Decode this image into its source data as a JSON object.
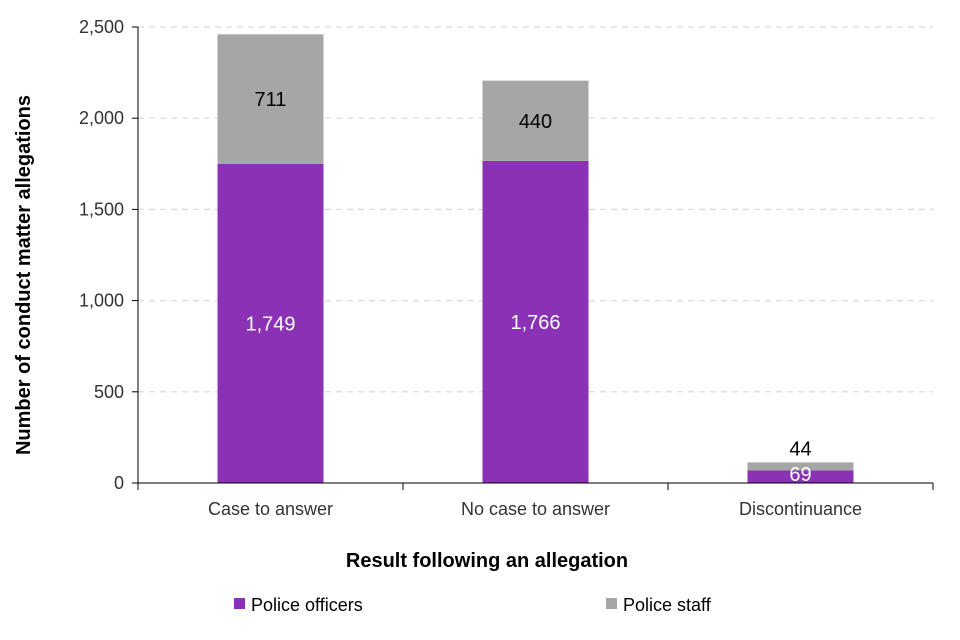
{
  "chart_data": {
    "type": "bar",
    "stacked": true,
    "categories": [
      "Case to answer",
      "No case to answer",
      "Discontinuance"
    ],
    "series": [
      {
        "name": "Police officers",
        "values": [
          1749,
          1766,
          69
        ],
        "labels": [
          "1,749",
          "1,766",
          "69"
        ],
        "color": "#8a31b5",
        "label_color": "#ffffff"
      },
      {
        "name": "Police staff",
        "values": [
          711,
          440,
          44
        ],
        "labels": [
          "711",
          "440",
          "44"
        ],
        "color": "#a6a6a6",
        "label_color": "#000000"
      }
    ],
    "xlabel": "Result following an allegation",
    "ylabel": "Number of conduct matter allegations",
    "ylim": [
      0,
      2500
    ],
    "yticks": [
      0,
      500,
      1000,
      1500,
      2000,
      2500
    ],
    "ytick_labels": [
      "0",
      "500",
      "1,000",
      "1,500",
      "2,000",
      "2,500"
    ],
    "grid": true,
    "legend_position": "bottom"
  }
}
